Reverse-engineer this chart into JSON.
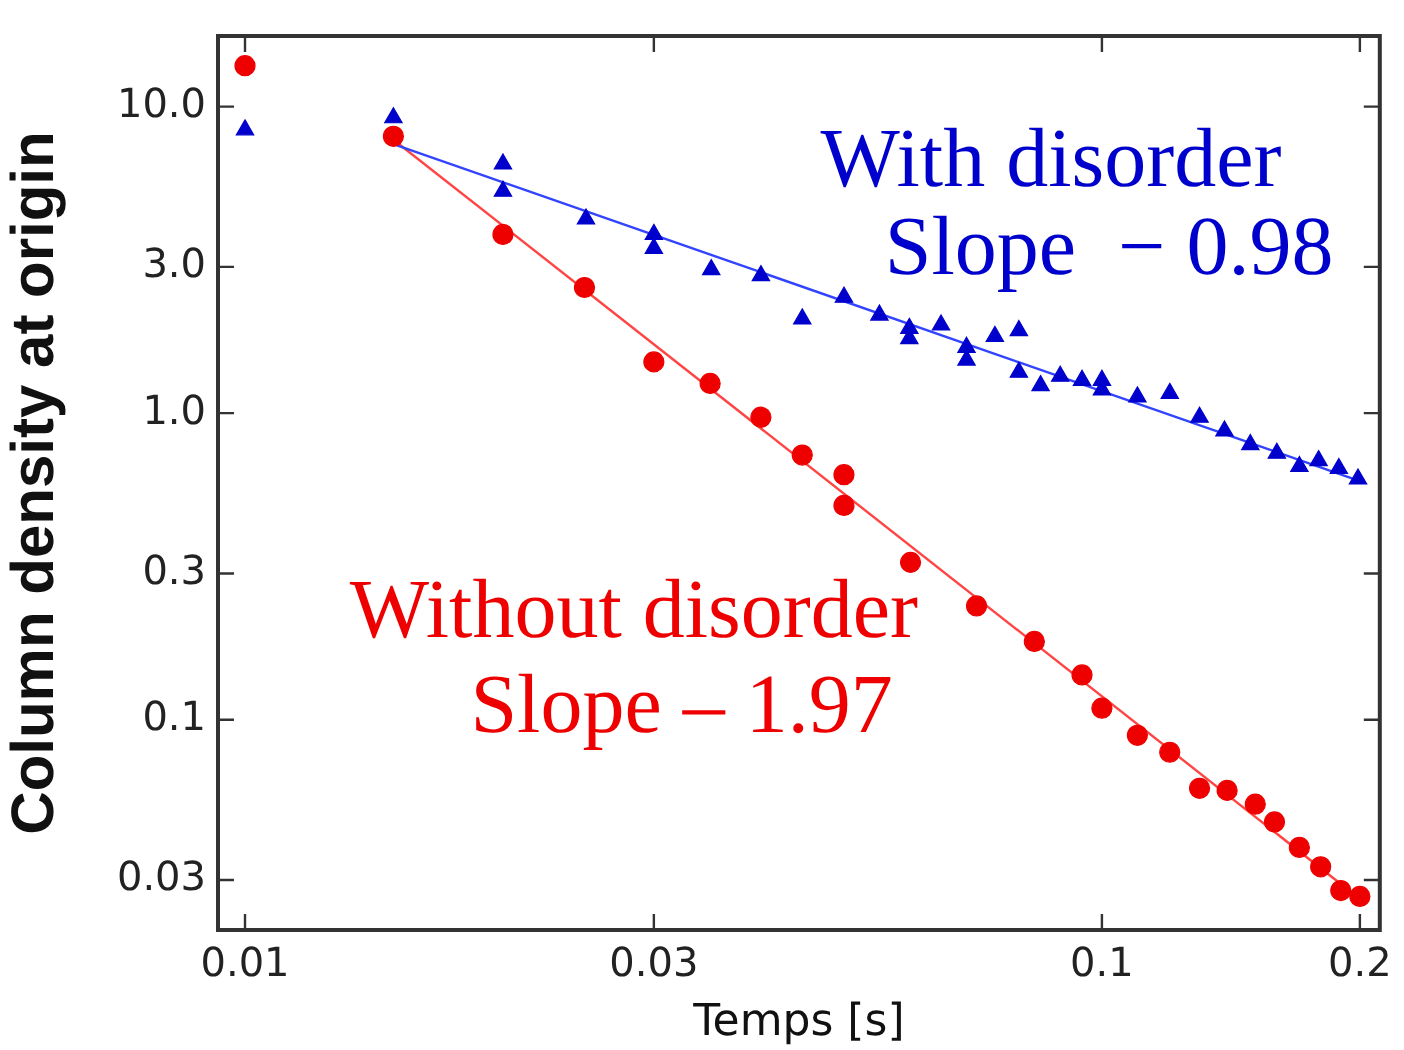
{
  "chart_data": {
    "type": "scatter",
    "xlabel": "Temps [s]",
    "ylabel": "Column density at origin",
    "log": "xy",
    "xlim": [
      0.0093,
      0.211
    ],
    "ylim": [
      0.0206,
      17
    ],
    "xticks": [
      0.01,
      0.03,
      0.1,
      0.2
    ],
    "yticks": [
      {
        "value": 10,
        "label": "10.0"
      },
      {
        "value": 3,
        "label": "3.0"
      },
      {
        "value": 1,
        "label": "1.0"
      },
      0.3,
      0.1,
      0.03
    ],
    "grid": false,
    "legend": false,
    "series": [
      {
        "color": "#0000cc",
        "marker": "triangle",
        "x": [
          0.01,
          0.0149,
          0.02,
          0.02,
          0.025,
          0.03,
          0.03,
          0.035,
          0.04,
          0.0447,
          0.05,
          0.055,
          0.0596,
          0.0596,
          0.0649,
          0.0695,
          0.0695,
          0.075,
          0.08,
          0.08,
          0.0848,
          0.0894,
          0.0948,
          0.1,
          0.1,
          0.11,
          0.12,
          0.13,
          0.139,
          0.149,
          0.16,
          0.17,
          0.179,
          0.189,
          0.199
        ],
        "values": [
          8.4,
          9.2,
          6.5,
          5.3,
          4.3,
          3.83,
          3.45,
          2.94,
          2.81,
          2.03,
          2.39,
          2.09,
          1.89,
          1.75,
          1.94,
          1.64,
          1.49,
          1.78,
          1.86,
          1.36,
          1.23,
          1.32,
          1.28,
          1.28,
          1.19,
          1.13,
          1.16,
          0.97,
          0.875,
          0.79,
          0.74,
          0.67,
          0.7,
          0.66,
          0.61
        ]
      },
      {
        "color": "#ee0000",
        "marker": "circle",
        "x": [
          0.01,
          0.0149,
          0.02,
          0.0249,
          0.03,
          0.0349,
          0.04,
          0.0447,
          0.05,
          0.05,
          0.0598,
          0.0714,
          0.0834,
          0.0948,
          0.1,
          0.11,
          0.12,
          0.13,
          0.14,
          0.151,
          0.159,
          0.17,
          0.18,
          0.19,
          0.2
        ],
        "values": [
          13.6,
          8.0,
          3.83,
          2.57,
          1.47,
          1.25,
          0.97,
          0.73,
          0.63,
          0.5,
          0.326,
          0.235,
          0.18,
          0.14,
          0.109,
          0.0889,
          0.0783,
          0.0597,
          0.0588,
          0.053,
          0.0464,
          0.0383,
          0.0331,
          0.0277,
          0.0265
        ]
      },
      {
        "type": "line",
        "color": "#3344ff",
        "marker": "none",
        "x": [
          0.0149,
          0.2
        ],
        "values": [
          7.55,
          0.6
        ]
      },
      {
        "type": "line",
        "color": "#ff4444",
        "marker": "none",
        "x": [
          0.0149,
          0.2
        ],
        "values": [
          7.8,
          0.026
        ]
      }
    ],
    "annotations": [
      "With disorder",
      "Slope  − 0.98",
      "Without disorder",
      "Slope – 1.97"
    ]
  }
}
